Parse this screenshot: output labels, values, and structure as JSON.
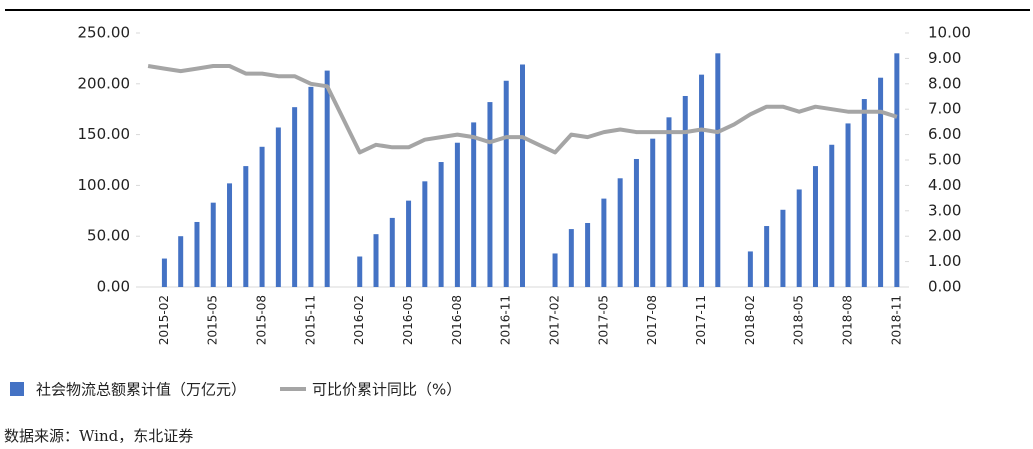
{
  "chart_data": {
    "type": "bar-line",
    "categories": [
      null,
      "2015-02",
      null,
      null,
      "2015-05",
      null,
      null,
      "2015-08",
      null,
      null,
      "2015-11",
      null,
      null,
      "2016-02",
      null,
      null,
      "2016-05",
      null,
      null,
      "2016-08",
      null,
      null,
      "2016-11",
      null,
      null,
      "2017-02",
      null,
      null,
      "2017-05",
      null,
      null,
      "2017-08",
      null,
      null,
      "2017-11",
      null,
      null,
      "2018-02",
      null,
      null,
      "2018-05",
      null,
      null,
      "2018-08",
      null,
      null,
      "2018-11"
    ],
    "series": [
      {
        "name": "社会物流总额累计值（万亿元）",
        "type": "bar",
        "color": "#4472c4",
        "values": [
          null,
          28,
          50,
          64,
          83,
          102,
          119,
          138,
          157,
          177,
          197,
          213,
          null,
          30,
          52,
          68,
          85,
          104,
          123,
          142,
          162,
          182,
          203,
          219,
          null,
          33,
          57,
          63,
          87,
          107,
          126,
          146,
          167,
          188,
          209,
          230,
          null,
          35,
          60,
          76,
          96,
          119,
          140,
          161,
          185,
          206,
          230
        ]
      },
      {
        "name": "可比价累计同比（%）",
        "type": "line",
        "color": "#a5a5a5",
        "axis": "y2",
        "values": [
          8.7,
          8.6,
          8.5,
          8.6,
          8.7,
          8.7,
          8.4,
          8.4,
          8.3,
          8.3,
          8.0,
          7.9,
          6.6,
          5.3,
          5.6,
          5.5,
          5.5,
          5.8,
          5.9,
          6.0,
          5.9,
          5.7,
          5.9,
          5.9,
          5.6,
          5.3,
          6.0,
          5.9,
          6.1,
          6.2,
          6.1,
          6.1,
          6.1,
          6.1,
          6.2,
          6.1,
          6.4,
          6.8,
          7.1,
          7.1,
          6.9,
          7.1,
          7.0,
          6.9,
          6.9,
          6.9,
          6.7
        ]
      }
    ],
    "ylim": [
      0,
      250
    ],
    "yticks": [
      {
        "value": 0,
        "label": "0.00"
      },
      {
        "value": 50,
        "label": "50.00"
      },
      {
        "value": 100,
        "label": "100.00"
      },
      {
        "value": 150,
        "label": "150.00"
      },
      {
        "value": 200,
        "label": "200.00"
      },
      {
        "value": 250,
        "label": "250.00"
      }
    ],
    "y2lim": [
      0,
      10
    ],
    "y2ticks": [
      {
        "value": 0,
        "label": "0.00"
      },
      {
        "value": 1,
        "label": "1.00"
      },
      {
        "value": 2,
        "label": "2.00"
      },
      {
        "value": 3,
        "label": "3.00"
      },
      {
        "value": 4,
        "label": "4.00"
      },
      {
        "value": 5,
        "label": "5.00"
      },
      {
        "value": 6,
        "label": "6.00"
      },
      {
        "value": 7,
        "label": "7.00"
      },
      {
        "value": 8,
        "label": "8.00"
      },
      {
        "value": 9,
        "label": "9.00"
      },
      {
        "value": 10,
        "label": "10.00"
      }
    ],
    "grid": false,
    "source": "数据来源：Wind，东北证券"
  }
}
